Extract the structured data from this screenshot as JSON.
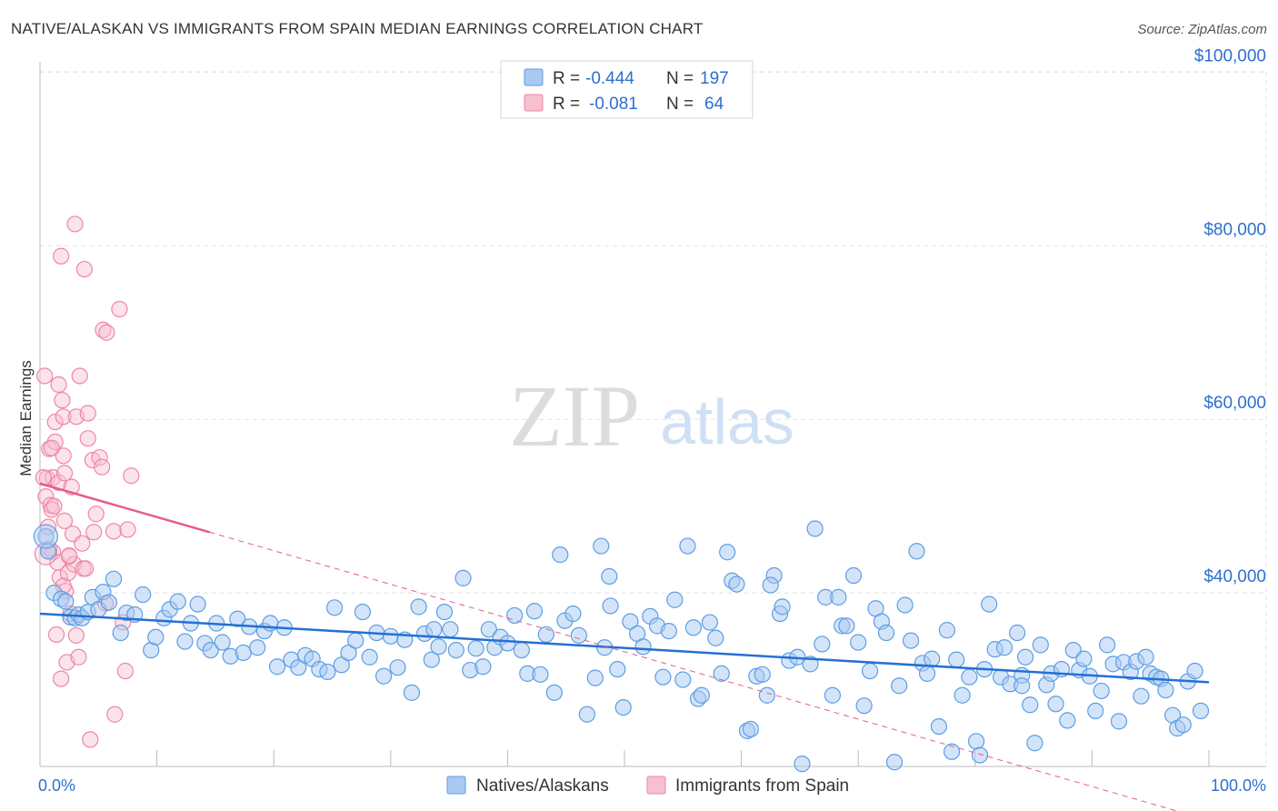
{
  "header": {
    "title": "NATIVE/ALASKAN VS IMMIGRANTS FROM SPAIN MEDIAN EARNINGS CORRELATION CHART",
    "source": "Source: ZipAtlas.com"
  },
  "watermark": {
    "zip": "ZIP",
    "atlas": "atlas"
  },
  "legend_top": {
    "rows": [
      {
        "r_label": "R =",
        "r_value": "-0.444",
        "n_label": "N =",
        "n_value": "197"
      },
      {
        "r_label": "R =",
        "r_value": "-0.081",
        "n_label": "N =",
        "n_value": "64"
      }
    ]
  },
  "colors": {
    "blue": "#5b9ee6",
    "blue_fill": "#a9c9f1",
    "blue_line": "#2470d3",
    "pink": "#ef86a6",
    "pink_fill": "#f6c0d0",
    "pink_line": "#e35d8a",
    "value_text": "#2e6fd0",
    "grid": "#e4e4e4"
  },
  "chart_data": {
    "type": "scatter",
    "title": "NATIVE/ALASKAN VS IMMIGRANTS FROM SPAIN MEDIAN EARNINGS CORRELATION CHART",
    "ylabel": "Median Earnings",
    "xlim": [
      0,
      100
    ],
    "ylim": [
      20000,
      102000
    ],
    "x_tick_labels": [
      "0.0%",
      "100.0%"
    ],
    "y_ticks": [
      40000,
      60000,
      80000,
      100000
    ],
    "y_tick_labels": [
      "$40,000",
      "$60,000",
      "$80,000",
      "$100,000"
    ],
    "grid": true,
    "legend_position": "bottom-center",
    "series": [
      {
        "name": "Natives/Alaskans",
        "r": -0.444,
        "n": 197,
        "trend": {
          "x0": 0,
          "y0": 37600,
          "x1": 100,
          "y1": 29700
        },
        "points": [
          [
            0.5,
            46500
          ],
          [
            0.7,
            44800
          ],
          [
            1.2,
            40000
          ],
          [
            1.8,
            39300
          ],
          [
            2.2,
            39000
          ],
          [
            2.6,
            37200
          ],
          [
            3.0,
            37100
          ],
          [
            3.3,
            37500
          ],
          [
            3.6,
            37100
          ],
          [
            4.1,
            37800
          ],
          [
            4.5,
            39500
          ],
          [
            5.0,
            38100
          ],
          [
            5.4,
            40100
          ],
          [
            5.9,
            38900
          ],
          [
            6.3,
            41600
          ],
          [
            6.9,
            35400
          ],
          [
            7.4,
            37700
          ],
          [
            8.1,
            37500
          ],
          [
            8.8,
            39800
          ],
          [
            9.5,
            33400
          ],
          [
            9.9,
            34900
          ],
          [
            10.6,
            37100
          ],
          [
            11.1,
            38100
          ],
          [
            11.8,
            39000
          ],
          [
            12.4,
            34400
          ],
          [
            12.9,
            36500
          ],
          [
            13.5,
            38700
          ],
          [
            14.1,
            34200
          ],
          [
            14.6,
            33400
          ],
          [
            15.1,
            36500
          ],
          [
            15.6,
            34300
          ],
          [
            16.3,
            32700
          ],
          [
            16.9,
            37000
          ],
          [
            17.4,
            33100
          ],
          [
            17.9,
            36100
          ],
          [
            18.6,
            33700
          ],
          [
            19.2,
            35600
          ],
          [
            19.7,
            36500
          ],
          [
            20.3,
            31500
          ],
          [
            20.9,
            36000
          ],
          [
            21.5,
            32300
          ],
          [
            22.1,
            31400
          ],
          [
            22.7,
            32800
          ],
          [
            23.3,
            32400
          ],
          [
            23.9,
            31200
          ],
          [
            24.6,
            30900
          ],
          [
            25.2,
            38300
          ],
          [
            25.8,
            31700
          ],
          [
            26.4,
            33100
          ],
          [
            27.0,
            34500
          ],
          [
            27.6,
            37800
          ],
          [
            28.2,
            32600
          ],
          [
            28.8,
            35400
          ],
          [
            29.4,
            30400
          ],
          [
            30.0,
            35000
          ],
          [
            30.6,
            31400
          ],
          [
            31.2,
            34600
          ],
          [
            31.8,
            28500
          ],
          [
            32.4,
            38400
          ],
          [
            32.9,
            35300
          ],
          [
            33.5,
            32300
          ],
          [
            34.1,
            33800
          ],
          [
            34.6,
            37800
          ],
          [
            35.1,
            35800
          ],
          [
            35.6,
            33400
          ],
          [
            36.2,
            41700
          ],
          [
            36.8,
            31100
          ],
          [
            37.3,
            33600
          ],
          [
            37.9,
            31500
          ],
          [
            38.4,
            35800
          ],
          [
            38.9,
            33700
          ],
          [
            39.4,
            34900
          ],
          [
            40.0,
            34200
          ],
          [
            40.6,
            37400
          ],
          [
            41.2,
            33400
          ],
          [
            41.7,
            30700
          ],
          [
            42.3,
            37900
          ],
          [
            42.8,
            30600
          ],
          [
            43.3,
            35200
          ],
          [
            44.0,
            28500
          ],
          [
            44.5,
            44400
          ],
          [
            44.9,
            36800
          ],
          [
            45.6,
            37600
          ],
          [
            46.1,
            35100
          ],
          [
            46.8,
            26000
          ],
          [
            47.5,
            30200
          ],
          [
            48.0,
            45400
          ],
          [
            48.3,
            33700
          ],
          [
            48.7,
            41900
          ],
          [
            49.4,
            31200
          ],
          [
            49.9,
            26800
          ],
          [
            50.5,
            36700
          ],
          [
            51.1,
            35300
          ],
          [
            51.6,
            33800
          ],
          [
            52.2,
            37300
          ],
          [
            52.8,
            36200
          ],
          [
            53.3,
            30300
          ],
          [
            53.8,
            35600
          ],
          [
            54.3,
            39200
          ],
          [
            55.0,
            30000
          ],
          [
            55.4,
            45400
          ],
          [
            55.9,
            36000
          ],
          [
            56.3,
            27800
          ],
          [
            56.6,
            28200
          ],
          [
            57.3,
            36600
          ],
          [
            57.8,
            34800
          ],
          [
            58.3,
            30700
          ],
          [
            58.8,
            44700
          ],
          [
            59.2,
            41400
          ],
          [
            59.6,
            41000
          ],
          [
            60.5,
            24100
          ],
          [
            60.8,
            24300
          ],
          [
            61.3,
            30400
          ],
          [
            61.8,
            30600
          ],
          [
            62.2,
            28200
          ],
          [
            62.8,
            42000
          ],
          [
            63.3,
            37600
          ],
          [
            63.5,
            38400
          ],
          [
            64.1,
            32200
          ],
          [
            64.8,
            32600
          ],
          [
            65.2,
            20300
          ],
          [
            65.9,
            31800
          ],
          [
            66.3,
            47400
          ],
          [
            66.9,
            34100
          ],
          [
            67.2,
            39500
          ],
          [
            67.8,
            28200
          ],
          [
            68.3,
            39500
          ],
          [
            68.6,
            36200
          ],
          [
            69.0,
            36200
          ],
          [
            69.6,
            42000
          ],
          [
            70.0,
            34300
          ],
          [
            70.5,
            27000
          ],
          [
            71.0,
            31000
          ],
          [
            71.5,
            38200
          ],
          [
            72.0,
            36700
          ],
          [
            72.4,
            35400
          ],
          [
            73.1,
            20500
          ],
          [
            73.5,
            29300
          ],
          [
            74.0,
            38600
          ],
          [
            74.5,
            34500
          ],
          [
            75.0,
            44800
          ],
          [
            75.5,
            31900
          ],
          [
            75.9,
            30700
          ],
          [
            76.3,
            32400
          ],
          [
            76.9,
            24600
          ],
          [
            77.6,
            35700
          ],
          [
            78.0,
            21700
          ],
          [
            78.4,
            32300
          ],
          [
            78.9,
            28200
          ],
          [
            79.5,
            30300
          ],
          [
            80.1,
            22900
          ],
          [
            80.4,
            21300
          ],
          [
            80.8,
            31200
          ],
          [
            81.2,
            38700
          ],
          [
            81.7,
            33500
          ],
          [
            82.2,
            30300
          ],
          [
            82.5,
            33700
          ],
          [
            83.0,
            29500
          ],
          [
            83.6,
            35400
          ],
          [
            84.0,
            30500
          ],
          [
            84.3,
            32600
          ],
          [
            84.7,
            27100
          ],
          [
            85.1,
            22700
          ],
          [
            85.6,
            34000
          ],
          [
            86.1,
            29400
          ],
          [
            86.5,
            30700
          ],
          [
            86.9,
            27200
          ],
          [
            87.4,
            31200
          ],
          [
            87.9,
            25300
          ],
          [
            88.4,
            33400
          ],
          [
            88.9,
            31100
          ],
          [
            89.3,
            32400
          ],
          [
            89.8,
            30400
          ],
          [
            90.3,
            26400
          ],
          [
            90.8,
            28700
          ],
          [
            91.3,
            34000
          ],
          [
            91.8,
            31800
          ],
          [
            92.3,
            25200
          ],
          [
            92.7,
            32000
          ],
          [
            93.3,
            30900
          ],
          [
            93.8,
            32100
          ],
          [
            94.2,
            28100
          ],
          [
            94.6,
            32600
          ],
          [
            95.0,
            30700
          ],
          [
            95.5,
            30300
          ],
          [
            95.9,
            30100
          ],
          [
            96.3,
            28800
          ],
          [
            96.9,
            25900
          ],
          [
            97.3,
            24400
          ],
          [
            97.8,
            24800
          ],
          [
            98.2,
            29800
          ],
          [
            98.8,
            31000
          ],
          [
            99.3,
            26400
          ],
          [
            84.0,
            29300
          ],
          [
            62.5,
            40900
          ],
          [
            33.7,
            35800
          ],
          [
            48.8,
            38500
          ]
        ]
      },
      {
        "name": "Immigrants from Spain",
        "r": -0.081,
        "n": 64,
        "trend": {
          "x0": 0,
          "y0": 52600,
          "x1": 14.5,
          "y1": 47000,
          "dash_x1": 100,
          "dash_y1": 13800
        },
        "points": [
          [
            0.4,
            65000
          ],
          [
            0.5,
            51100
          ],
          [
            0.6,
            53200
          ],
          [
            0.7,
            47600
          ],
          [
            0.8,
            45100
          ],
          [
            0.8,
            56600
          ],
          [
            0.9,
            50100
          ],
          [
            1.0,
            49600
          ],
          [
            1.1,
            44700
          ],
          [
            1.1,
            53300
          ],
          [
            1.2,
            50000
          ],
          [
            1.3,
            57400
          ],
          [
            1.3,
            59700
          ],
          [
            1.4,
            35200
          ],
          [
            1.5,
            43500
          ],
          [
            1.6,
            52700
          ],
          [
            1.6,
            64000
          ],
          [
            1.7,
            41800
          ],
          [
            1.8,
            78800
          ],
          [
            1.8,
            30100
          ],
          [
            1.9,
            62200
          ],
          [
            2.0,
            60300
          ],
          [
            2.0,
            55800
          ],
          [
            2.1,
            53800
          ],
          [
            2.1,
            48300
          ],
          [
            2.2,
            40200
          ],
          [
            2.3,
            32000
          ],
          [
            2.4,
            42300
          ],
          [
            2.5,
            44200
          ],
          [
            2.6,
            37600
          ],
          [
            2.7,
            52200
          ],
          [
            2.8,
            46800
          ],
          [
            2.9,
            43300
          ],
          [
            3.0,
            82500
          ],
          [
            3.1,
            35100
          ],
          [
            3.1,
            60300
          ],
          [
            3.3,
            32600
          ],
          [
            3.4,
            65000
          ],
          [
            3.6,
            45700
          ],
          [
            3.7,
            42800
          ],
          [
            3.8,
            77300
          ],
          [
            3.9,
            42800
          ],
          [
            4.1,
            57800
          ],
          [
            4.1,
            60700
          ],
          [
            4.3,
            23100
          ],
          [
            4.5,
            55300
          ],
          [
            4.6,
            47000
          ],
          [
            4.8,
            49100
          ],
          [
            5.1,
            55600
          ],
          [
            5.3,
            54500
          ],
          [
            5.4,
            70300
          ],
          [
            5.6,
            38800
          ],
          [
            5.7,
            70000
          ],
          [
            6.3,
            47100
          ],
          [
            6.4,
            26000
          ],
          [
            6.8,
            72700
          ],
          [
            7.1,
            36600
          ],
          [
            7.3,
            31000
          ],
          [
            7.5,
            47300
          ],
          [
            7.8,
            53500
          ],
          [
            2.0,
            40800
          ],
          [
            0.3,
            53300
          ],
          [
            1.0,
            56700
          ],
          [
            2.5,
            44300
          ]
        ]
      }
    ]
  },
  "legend_bottom": {
    "items": [
      {
        "label": "Natives/Alaskans"
      },
      {
        "label": "Immigrants from Spain"
      }
    ]
  }
}
